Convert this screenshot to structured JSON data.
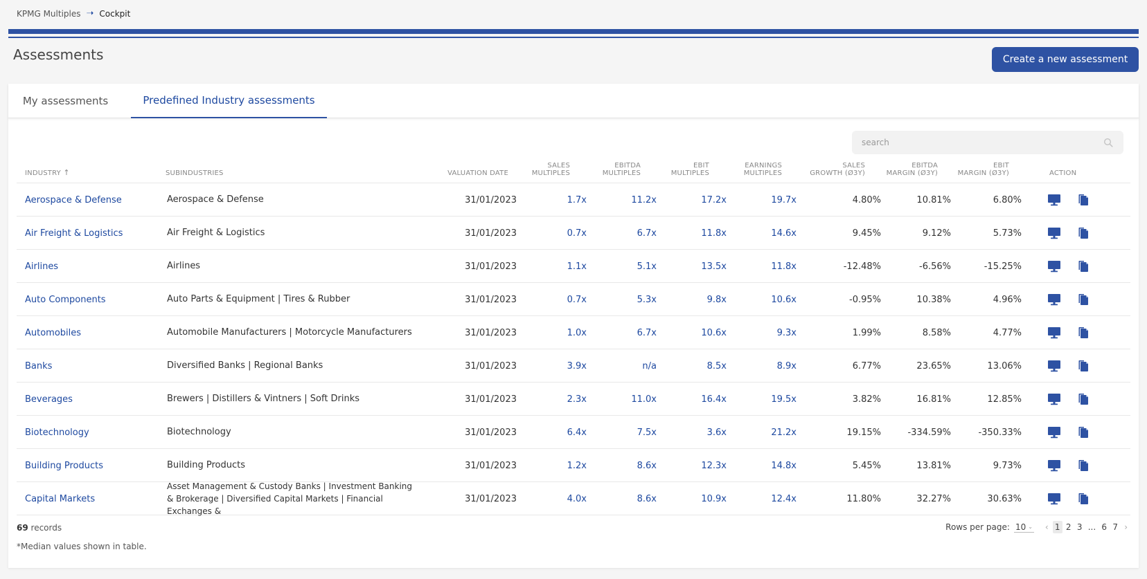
{
  "breadcrumb": {
    "root": "KPMG Multiples",
    "current": "Cockpit"
  },
  "page": {
    "title": "Assessments",
    "create_label": "Create a new assessment"
  },
  "tabs": [
    {
      "label": "My assessments"
    },
    {
      "label": "Predefined Industry assessments"
    }
  ],
  "search": {
    "placeholder": "search"
  },
  "columns": {
    "industry": "INDUSTRY",
    "sub": "SUBINDUSTRIES",
    "date": "VALUATION DATE",
    "sales_a": "SALES",
    "sales_b": "MULTIPLES",
    "ebitda_a": "EBITDA",
    "ebitda_b": "MULTIPLES",
    "ebit_a": "EBIT",
    "ebit_b": "MULTIPLES",
    "earn_a": "EARNINGS",
    "earn_b": "MULTIPLES",
    "sg_a": "SALES",
    "sg_b": "GROWTH (Ø3Y)",
    "em_a": "EBITDA",
    "em_b": "MARGIN (Ø3Y)",
    "ebm_a": "EBIT",
    "ebm_b": "MARGIN (Ø3Y)",
    "action": "ACTION",
    "sort_arrow": "↑"
  },
  "rows": [
    {
      "industry": "Aerospace & Defense",
      "sub": "Aerospace & Defense",
      "date": "31/01/2023",
      "sales": "1.7x",
      "ebitda": "11.2x",
      "ebit": "17.2x",
      "earnings": "19.7x",
      "growth": "4.80%",
      "ebitda_margin": "10.81%",
      "ebit_margin": "6.80%"
    },
    {
      "industry": "Air Freight & Logistics",
      "sub": "Air Freight & Logistics",
      "date": "31/01/2023",
      "sales": "0.7x",
      "ebitda": "6.7x",
      "ebit": "11.8x",
      "earnings": "14.6x",
      "growth": "9.45%",
      "ebitda_margin": "9.12%",
      "ebit_margin": "5.73%"
    },
    {
      "industry": "Airlines",
      "sub": "Airlines",
      "date": "31/01/2023",
      "sales": "1.1x",
      "ebitda": "5.1x",
      "ebit": "13.5x",
      "earnings": "11.8x",
      "growth": "-12.48%",
      "ebitda_margin": "-6.56%",
      "ebit_margin": "-15.25%"
    },
    {
      "industry": "Auto Components",
      "sub": "Auto Parts & Equipment | Tires & Rubber",
      "date": "31/01/2023",
      "sales": "0.7x",
      "ebitda": "5.3x",
      "ebit": "9.8x",
      "earnings": "10.6x",
      "growth": "-0.95%",
      "ebitda_margin": "10.38%",
      "ebit_margin": "4.96%"
    },
    {
      "industry": "Automobiles",
      "sub": "Automobile Manufacturers | Motorcycle Manufacturers",
      "date": "31/01/2023",
      "sales": "1.0x",
      "ebitda": "6.7x",
      "ebit": "10.6x",
      "earnings": "9.3x",
      "growth": "1.99%",
      "ebitda_margin": "8.58%",
      "ebit_margin": "4.77%"
    },
    {
      "industry": "Banks",
      "sub": "Diversified Banks | Regional Banks",
      "date": "31/01/2023",
      "sales": "3.9x",
      "ebitda": "n/a",
      "ebit": "8.5x",
      "earnings": "8.9x",
      "growth": "6.77%",
      "ebitda_margin": "23.65%",
      "ebit_margin": "13.06%"
    },
    {
      "industry": "Beverages",
      "sub": "Brewers | Distillers & Vintners | Soft Drinks",
      "date": "31/01/2023",
      "sales": "2.3x",
      "ebitda": "11.0x",
      "ebit": "16.4x",
      "earnings": "19.5x",
      "growth": "3.82%",
      "ebitda_margin": "16.81%",
      "ebit_margin": "12.85%"
    },
    {
      "industry": "Biotechnology",
      "sub": "Biotechnology",
      "date": "31/01/2023",
      "sales": "6.4x",
      "ebitda": "7.5x",
      "ebit": "3.6x",
      "earnings": "21.2x",
      "growth": "19.15%",
      "ebitda_margin": "-334.59%",
      "ebit_margin": "-350.33%"
    },
    {
      "industry": "Building Products",
      "sub": "Building Products",
      "date": "31/01/2023",
      "sales": "1.2x",
      "ebitda": "8.6x",
      "ebit": "12.3x",
      "earnings": "14.8x",
      "growth": "5.45%",
      "ebitda_margin": "13.81%",
      "ebit_margin": "9.73%"
    },
    {
      "industry": "Capital Markets",
      "sub": "Asset Management & Custody Banks | Investment Banking & Brokerage | Diversified Capital Markets | Financial Exchanges &",
      "date": "31/01/2023",
      "sales": "4.0x",
      "ebitda": "8.6x",
      "ebit": "10.9x",
      "earnings": "12.4x",
      "growth": "11.80%",
      "ebitda_margin": "32.27%",
      "ebit_margin": "30.63%"
    }
  ],
  "footer": {
    "records_count": "69",
    "records_label": "records",
    "note": "*Median values shown in table.",
    "rows_per_page_label": "Rows per page:",
    "rows_per_page_value": "10",
    "pages": [
      "1",
      "2",
      "3",
      "...",
      "6",
      "7"
    ],
    "active_page": "1"
  },
  "colors": {
    "brand": "#2e52a3",
    "link": "#1e49a0"
  },
  "icons": {
    "view": "monitor-icon",
    "copy": "copy-icon",
    "search": "search-icon",
    "sort": "sort-asc-icon"
  }
}
